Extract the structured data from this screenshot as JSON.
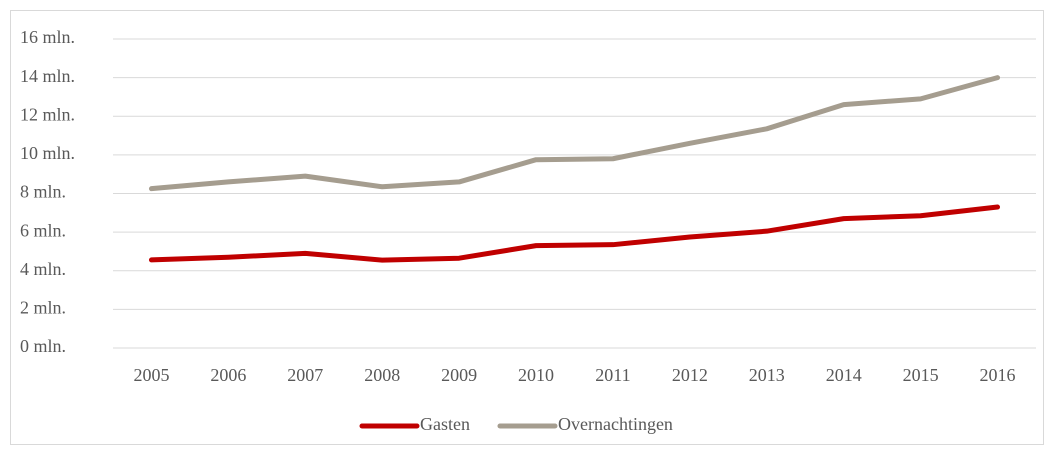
{
  "chart_data": {
    "type": "line",
    "categories": [
      "2005",
      "2006",
      "2007",
      "2008",
      "2009",
      "2010",
      "2011",
      "2012",
      "2013",
      "2014",
      "2015",
      "2016"
    ],
    "series": [
      {
        "name": "Gasten",
        "color": "#c00000",
        "values": [
          4.56,
          4.7,
          4.9,
          4.55,
          4.65,
          5.3,
          5.35,
          5.75,
          6.05,
          6.7,
          6.85,
          7.3
        ]
      },
      {
        "name": "Overnachtingen",
        "color": "#a59d8f",
        "values": [
          8.25,
          8.6,
          8.9,
          8.35,
          8.6,
          9.75,
          9.8,
          10.6,
          11.35,
          12.6,
          12.9,
          14.0
        ]
      }
    ],
    "ylim": [
      0,
      16
    ],
    "yticks": [
      {
        "value": 0,
        "label": "0 mln."
      },
      {
        "value": 2,
        "label": "2 mln."
      },
      {
        "value": 4,
        "label": "4 mln."
      },
      {
        "value": 6,
        "label": "6 mln."
      },
      {
        "value": 8,
        "label": "8 mln."
      },
      {
        "value": 10,
        "label": "10 mln."
      },
      {
        "value": 12,
        "label": "12 mln."
      },
      {
        "value": 14,
        "label": "14 mln."
      },
      {
        "value": 16,
        "label": "16 mln."
      }
    ],
    "grid": true,
    "legend": "bottom"
  }
}
